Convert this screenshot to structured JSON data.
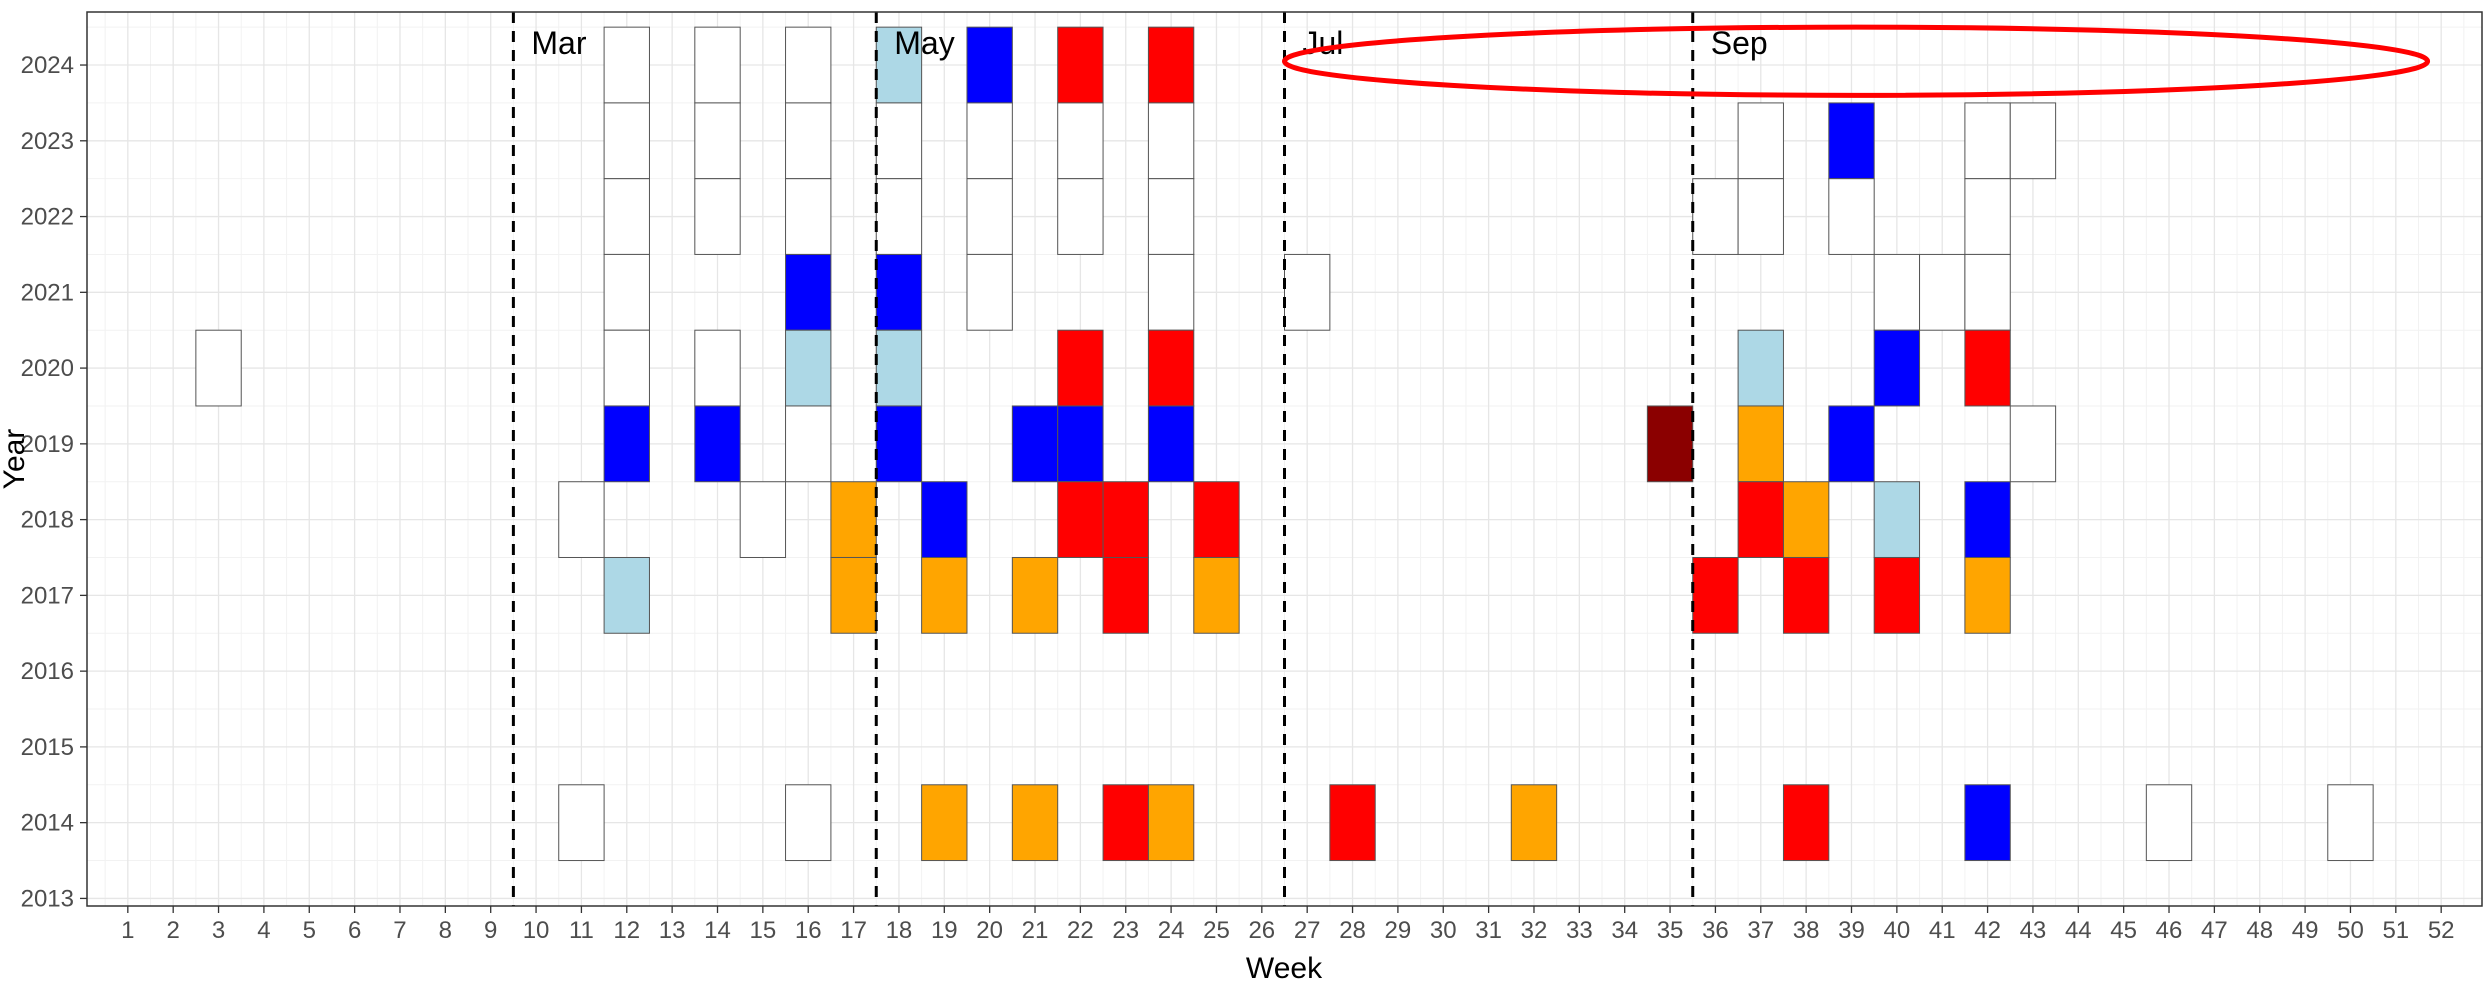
{
  "chart_data": {
    "type": "heatmap",
    "title": "",
    "xlabel": "Week",
    "ylabel": "Year",
    "x_ticks": [
      1,
      2,
      3,
      4,
      5,
      6,
      7,
      8,
      9,
      10,
      11,
      12,
      13,
      14,
      15,
      16,
      17,
      18,
      19,
      20,
      21,
      22,
      23,
      24,
      25,
      26,
      27,
      28,
      29,
      30,
      31,
      32,
      33,
      34,
      35,
      36,
      37,
      38,
      39,
      40,
      41,
      42,
      43,
      44,
      45,
      46,
      47,
      48,
      49,
      50,
      51,
      52
    ],
    "y_ticks": [
      2013,
      2014,
      2015,
      2016,
      2017,
      2018,
      2019,
      2020,
      2021,
      2022,
      2023,
      2024
    ],
    "xlim": [
      0.1,
      52.9
    ],
    "ylim": [
      2012.9,
      2024.7
    ],
    "grid": true,
    "month_markers": [
      {
        "label": "Mar",
        "week": 9.5
      },
      {
        "label": "May",
        "week": 17.5
      },
      {
        "label": "Jul",
        "week": 26.5
      },
      {
        "label": "Sep",
        "week": 35.5
      }
    ],
    "annotation": {
      "shape": "ellipse",
      "color": "#ff0000",
      "x_range": [
        26.5,
        51.7
      ],
      "y_range": [
        2023.6,
        2024.5
      ]
    },
    "palette": {
      "white": "#ffffff",
      "lightblue": "#add8e6",
      "blue": "#0000ff",
      "red": "#ff0000",
      "orange": "#ffa500",
      "darkred": "#8b0000"
    },
    "tiles": [
      {
        "year": 2024,
        "week": 12,
        "color": "white"
      },
      {
        "year": 2024,
        "week": 14,
        "color": "white"
      },
      {
        "year": 2024,
        "week": 16,
        "color": "white"
      },
      {
        "year": 2024,
        "week": 18,
        "color": "lightblue"
      },
      {
        "year": 2024,
        "week": 20,
        "color": "blue"
      },
      {
        "year": 2024,
        "week": 22,
        "color": "red"
      },
      {
        "year": 2024,
        "week": 24,
        "color": "red"
      },
      {
        "year": 2023,
        "week": 12,
        "color": "white"
      },
      {
        "year": 2023,
        "week": 14,
        "color": "white"
      },
      {
        "year": 2023,
        "week": 16,
        "color": "white"
      },
      {
        "year": 2023,
        "week": 18,
        "color": "white"
      },
      {
        "year": 2023,
        "week": 20,
        "color": "white"
      },
      {
        "year": 2023,
        "week": 22,
        "color": "white"
      },
      {
        "year": 2023,
        "week": 24,
        "color": "white"
      },
      {
        "year": 2023,
        "week": 37,
        "color": "white"
      },
      {
        "year": 2023,
        "week": 39,
        "color": "blue"
      },
      {
        "year": 2023,
        "week": 42,
        "color": "white"
      },
      {
        "year": 2023,
        "week": 43,
        "color": "white"
      },
      {
        "year": 2022,
        "week": 12,
        "color": "white"
      },
      {
        "year": 2022,
        "week": 14,
        "color": "white"
      },
      {
        "year": 2022,
        "week": 16,
        "color": "white"
      },
      {
        "year": 2022,
        "week": 18,
        "color": "white"
      },
      {
        "year": 2022,
        "week": 20,
        "color": "white"
      },
      {
        "year": 2022,
        "week": 22,
        "color": "white"
      },
      {
        "year": 2022,
        "week": 24,
        "color": "white"
      },
      {
        "year": 2022,
        "week": 36,
        "color": "white"
      },
      {
        "year": 2022,
        "week": 37,
        "color": "white"
      },
      {
        "year": 2022,
        "week": 39,
        "color": "white"
      },
      {
        "year": 2022,
        "week": 42,
        "color": "white"
      },
      {
        "year": 2021,
        "week": 12,
        "color": "white"
      },
      {
        "year": 2021,
        "week": 16,
        "color": "blue"
      },
      {
        "year": 2021,
        "week": 18,
        "color": "blue"
      },
      {
        "year": 2021,
        "week": 20,
        "color": "white"
      },
      {
        "year": 2021,
        "week": 24,
        "color": "white"
      },
      {
        "year": 2021,
        "week": 27,
        "color": "white"
      },
      {
        "year": 2021,
        "week": 40,
        "color": "white"
      },
      {
        "year": 2021,
        "week": 41,
        "color": "white"
      },
      {
        "year": 2021,
        "week": 42,
        "color": "white"
      },
      {
        "year": 2020,
        "week": 3,
        "color": "white"
      },
      {
        "year": 2020,
        "week": 12,
        "color": "white"
      },
      {
        "year": 2020,
        "week": 14,
        "color": "white"
      },
      {
        "year": 2020,
        "week": 16,
        "color": "lightblue"
      },
      {
        "year": 2020,
        "week": 18,
        "color": "lightblue"
      },
      {
        "year": 2020,
        "week": 22,
        "color": "red"
      },
      {
        "year": 2020,
        "week": 24,
        "color": "red"
      },
      {
        "year": 2020,
        "week": 37,
        "color": "lightblue"
      },
      {
        "year": 2020,
        "week": 40,
        "color": "blue"
      },
      {
        "year": 2020,
        "week": 42,
        "color": "red"
      },
      {
        "year": 2019,
        "week": 12,
        "color": "blue"
      },
      {
        "year": 2019,
        "week": 14,
        "color": "blue"
      },
      {
        "year": 2019,
        "week": 16,
        "color": "white"
      },
      {
        "year": 2019,
        "week": 18,
        "color": "blue"
      },
      {
        "year": 2019,
        "week": 21,
        "color": "blue"
      },
      {
        "year": 2019,
        "week": 22,
        "color": "blue"
      },
      {
        "year": 2019,
        "week": 24,
        "color": "blue"
      },
      {
        "year": 2019,
        "week": 35,
        "color": "darkred"
      },
      {
        "year": 2019,
        "week": 37,
        "color": "orange"
      },
      {
        "year": 2019,
        "week": 39,
        "color": "blue"
      },
      {
        "year": 2019,
        "week": 43,
        "color": "white"
      },
      {
        "year": 2018,
        "week": 11,
        "color": "white"
      },
      {
        "year": 2018,
        "week": 15,
        "color": "white"
      },
      {
        "year": 2018,
        "week": 17,
        "color": "orange"
      },
      {
        "year": 2018,
        "week": 19,
        "color": "blue"
      },
      {
        "year": 2018,
        "week": 22,
        "color": "red"
      },
      {
        "year": 2018,
        "week": 23,
        "color": "red"
      },
      {
        "year": 2018,
        "week": 25,
        "color": "red"
      },
      {
        "year": 2018,
        "week": 37,
        "color": "red"
      },
      {
        "year": 2018,
        "week": 38,
        "color": "orange"
      },
      {
        "year": 2018,
        "week": 40,
        "color": "lightblue"
      },
      {
        "year": 2018,
        "week": 42,
        "color": "blue"
      },
      {
        "year": 2017,
        "week": 12,
        "color": "lightblue"
      },
      {
        "year": 2017,
        "week": 17,
        "color": "orange"
      },
      {
        "year": 2017,
        "week": 19,
        "color": "orange"
      },
      {
        "year": 2017,
        "week": 21,
        "color": "orange"
      },
      {
        "year": 2017,
        "week": 23,
        "color": "red"
      },
      {
        "year": 2017,
        "week": 25,
        "color": "orange"
      },
      {
        "year": 2017,
        "week": 36,
        "color": "red"
      },
      {
        "year": 2017,
        "week": 38,
        "color": "red"
      },
      {
        "year": 2017,
        "week": 40,
        "color": "red"
      },
      {
        "year": 2017,
        "week": 42,
        "color": "orange"
      },
      {
        "year": 2014,
        "week": 11,
        "color": "white"
      },
      {
        "year": 2014,
        "week": 16,
        "color": "white"
      },
      {
        "year": 2014,
        "week": 19,
        "color": "orange"
      },
      {
        "year": 2014,
        "week": 21,
        "color": "orange"
      },
      {
        "year": 2014,
        "week": 23,
        "color": "red"
      },
      {
        "year": 2014,
        "week": 24,
        "color": "orange"
      },
      {
        "year": 2014,
        "week": 28,
        "color": "red"
      },
      {
        "year": 2014,
        "week": 32,
        "color": "orange"
      },
      {
        "year": 2014,
        "week": 38,
        "color": "red"
      },
      {
        "year": 2014,
        "week": 42,
        "color": "blue"
      },
      {
        "year": 2014,
        "week": 46,
        "color": "white"
      },
      {
        "year": 2014,
        "week": 50,
        "color": "white"
      }
    ]
  }
}
